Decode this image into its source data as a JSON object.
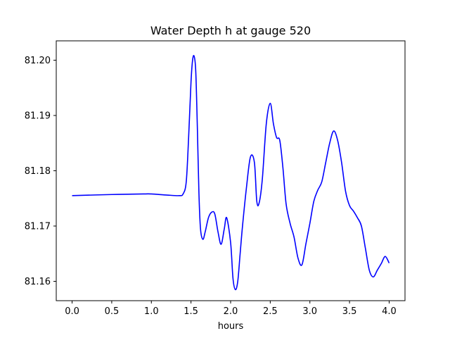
{
  "chart_data": {
    "type": "line",
    "title": "Water Depth h at gauge 520",
    "xlabel": "hours",
    "ylabel": "",
    "xlim": [
      -0.2,
      4.2
    ],
    "ylim": [
      81.1565,
      81.2035
    ],
    "xticks": [
      0.0,
      0.5,
      1.0,
      1.5,
      2.0,
      2.5,
      3.0,
      3.5,
      4.0
    ],
    "xtick_labels": [
      "0.0",
      "0.5",
      "1.0",
      "1.5",
      "2.0",
      "2.5",
      "3.0",
      "3.5",
      "4.0"
    ],
    "yticks": [
      81.16,
      81.17,
      81.18,
      81.19,
      81.2
    ],
    "ytick_labels": [
      "81.16",
      "81.17",
      "81.18",
      "81.19",
      "81.20"
    ],
    "grid": false,
    "series": [
      {
        "color": "#0000ff",
        "x": [
          0.0,
          0.5,
          0.9,
          1.0,
          1.2,
          1.35,
          1.4,
          1.44,
          1.47,
          1.5,
          1.52,
          1.54,
          1.56,
          1.58,
          1.6,
          1.62,
          1.65,
          1.68,
          1.72,
          1.76,
          1.8,
          1.84,
          1.88,
          1.92,
          1.95,
          2.0,
          2.03,
          2.06,
          2.09,
          2.12,
          2.15,
          2.2,
          2.25,
          2.3,
          2.33,
          2.36,
          2.4,
          2.45,
          2.5,
          2.54,
          2.58,
          2.62,
          2.66,
          2.7,
          2.75,
          2.8,
          2.85,
          2.9,
          2.95,
          3.0,
          3.05,
          3.1,
          3.15,
          3.2,
          3.25,
          3.3,
          3.35,
          3.4,
          3.45,
          3.5,
          3.55,
          3.6,
          3.65,
          3.7,
          3.75,
          3.8,
          3.85,
          3.9,
          3.95,
          4.0
        ],
        "y": [
          81.1755,
          81.1757,
          81.1758,
          81.1758,
          81.1756,
          81.1755,
          81.1758,
          81.178,
          81.186,
          81.196,
          81.2,
          81.2007,
          81.198,
          81.188,
          81.176,
          81.1695,
          81.1676,
          81.169,
          81.1715,
          81.1725,
          81.1722,
          81.169,
          81.1667,
          81.1695,
          81.1715,
          81.167,
          81.1605,
          81.1585,
          81.16,
          81.165,
          81.17,
          81.177,
          81.1825,
          81.1815,
          81.1745,
          81.1742,
          81.1785,
          81.1885,
          81.1922,
          81.1885,
          81.186,
          81.1855,
          81.1805,
          81.174,
          81.1705,
          81.168,
          81.1642,
          81.163,
          81.1668,
          81.1705,
          81.1745,
          81.1765,
          81.178,
          81.1815,
          81.185,
          81.1872,
          81.1855,
          81.1815,
          81.1763,
          81.1737,
          81.1727,
          81.1715,
          81.17,
          81.166,
          81.162,
          81.1608,
          81.162,
          81.1632,
          81.1645,
          81.1633
        ]
      }
    ]
  }
}
